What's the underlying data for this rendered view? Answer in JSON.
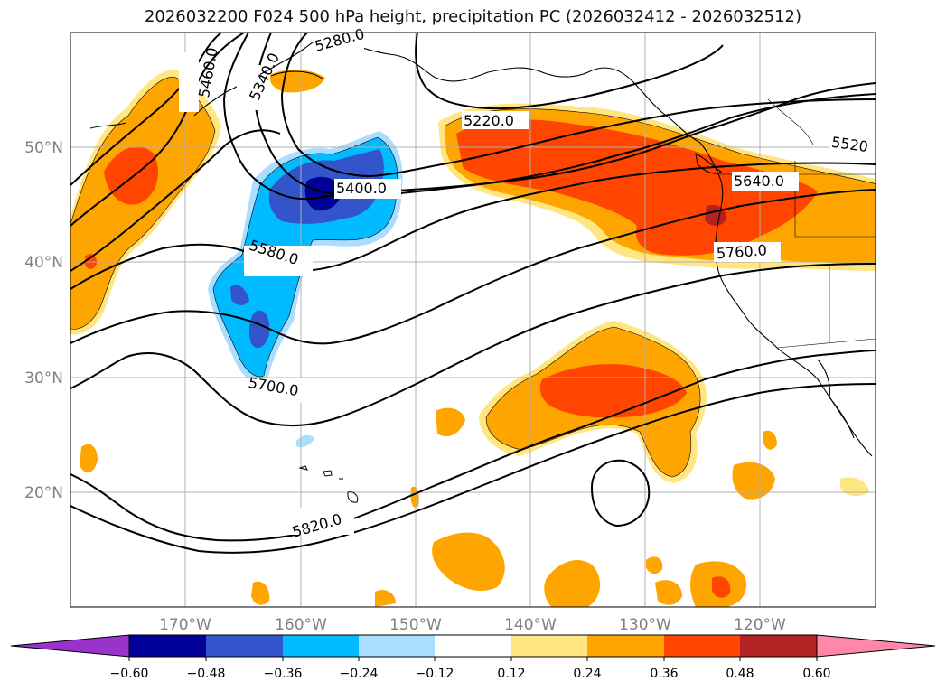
{
  "title": "2026032200 F024 500 hPa height, precipitation PC (2026032412 - 2026032512)",
  "map": {
    "lat_labels": [
      "50°N",
      "40°N",
      "30°N",
      "20°N"
    ],
    "lon_labels": [
      "170°W",
      "160°W",
      "150°W",
      "140°W",
      "130°W",
      "120°W"
    ],
    "contour_labels": [
      "5280.0",
      "5340.0",
      "5460.0",
      "5220.0",
      "5520",
      "5400.0",
      "5640.0",
      "5580.0",
      "5760.0",
      "5700.0",
      "5820.0"
    ]
  },
  "colorbar": {
    "ticks": [
      "−0.60",
      "−0.48",
      "−0.36",
      "−0.24",
      "−0.12",
      "0.12",
      "0.24",
      "0.36",
      "0.48",
      "0.60"
    ],
    "colors": [
      "#9933cc",
      "#000099",
      "#3355cc",
      "#00bbff",
      "#aaddff",
      "#ffffff",
      "#ffe680",
      "#ffa500",
      "#ff4500",
      "#b22222",
      "#ff88aa"
    ]
  },
  "colors": {
    "light_yellow": "#ffe680",
    "orange": "#ffa500",
    "red_orange": "#ff4500",
    "dark_red": "#b22222",
    "light_blue": "#aaddff",
    "cyan": "#00bbff",
    "medium_blue": "#3355cc",
    "navy": "#000099"
  }
}
